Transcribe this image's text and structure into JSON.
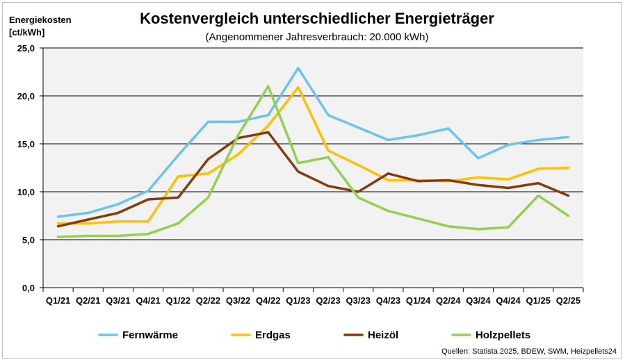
{
  "chart_data": {
    "type": "line",
    "title": "Kostenvergleich unterschiedlicher Energieträger",
    "subtitle": "(Angenommener Jahresverbrauch: 20.000 kWh)",
    "ylabel_line1": "Energiekosten",
    "ylabel_line2": "[ct/kWh]",
    "xlabel": "",
    "ylim": [
      0,
      25
    ],
    "yticks": [
      "0,0",
      "5,0",
      "10,0",
      "15,0",
      "20,0",
      "25,0"
    ],
    "ytick_values": [
      0,
      5,
      10,
      15,
      20,
      25
    ],
    "grid": "horizontal",
    "plot_background": "#f2f2f2",
    "legend_position": "bottom",
    "categories": [
      "Q1/21",
      "Q2/21",
      "Q3/21",
      "Q4/21",
      "Q1/22",
      "Q2/22",
      "Q3/22",
      "Q4/22",
      "Q1/23",
      "Q2/23",
      "Q3/23",
      "Q4/23",
      "Q1/24",
      "Q2/24",
      "Q3/24",
      "Q4/24",
      "Q1/25",
      "Q2/25"
    ],
    "series": [
      {
        "name": "Fernwärme",
        "color": "#6cc4ee",
        "values": [
          7.4,
          7.8,
          8.7,
          10.1,
          13.8,
          17.3,
          17.3,
          18.0,
          22.9,
          18.0,
          16.7,
          15.4,
          15.9,
          16.6,
          13.5,
          14.9,
          15.4,
          15.7
        ]
      },
      {
        "name": "Erdgas",
        "color": "#ffc000",
        "values": [
          6.7,
          6.7,
          6.9,
          6.9,
          11.6,
          11.9,
          13.9,
          16.9,
          20.9,
          14.3,
          12.8,
          11.2,
          11.2,
          11.1,
          11.5,
          11.3,
          12.4,
          12.5
        ]
      },
      {
        "name": "Heizöl",
        "color": "#843c0c",
        "values": [
          6.4,
          7.1,
          7.8,
          9.2,
          9.4,
          13.4,
          15.6,
          16.2,
          12.1,
          10.6,
          10.0,
          11.9,
          11.1,
          11.2,
          10.7,
          10.4,
          10.9,
          9.6
        ]
      },
      {
        "name": "Holzpellets",
        "color": "#92d050",
        "values": [
          5.3,
          5.4,
          5.4,
          5.6,
          6.7,
          9.4,
          15.9,
          21.0,
          13.0,
          13.6,
          9.4,
          8.0,
          7.2,
          6.4,
          6.1,
          6.3,
          9.6,
          7.5
        ]
      }
    ],
    "source": "Quellen: Statista 2025, BDEW, SWM, Heizpellets24"
  }
}
